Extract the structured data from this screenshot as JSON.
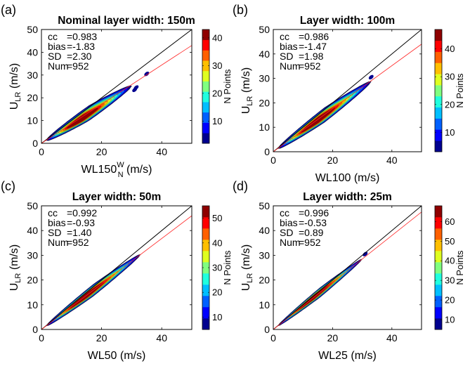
{
  "colormap": [
    "#00008f",
    "#0000ff",
    "#0060ff",
    "#00bfff",
    "#20ffdf",
    "#80ff80",
    "#dfff20",
    "#ffbf00",
    "#ff6000",
    "#ff0000",
    "#8f0000"
  ],
  "colorbar_label": "N Points",
  "chart_data": [
    {
      "type": "contour",
      "panel_letter": "(a)",
      "title": "Nominal layer width: 150m",
      "xlabel_main": "WL150",
      "xlabel_sup": "W",
      "xlabel_sub": "N",
      "xlabel_unit": " (m/s)",
      "ylabel_main": "U",
      "ylabel_sub": "LR",
      "ylabel_unit": " (m/s)",
      "xlim": [
        0,
        50
      ],
      "ylim": [
        0,
        50
      ],
      "xticks": [
        "0",
        "20",
        "40"
      ],
      "xtick_values": [
        0,
        20,
        40
      ],
      "yticks": [
        "0",
        "10",
        "20",
        "30",
        "40",
        "50"
      ],
      "ytick_values": [
        0,
        10,
        20,
        30,
        40,
        50
      ],
      "stats": {
        "cc": "0.983",
        "bias": "-1.83",
        "SD": "2.30",
        "Num": "952"
      },
      "one_to_one": true,
      "fit_line": {
        "slope": 0.86,
        "intercept": 0.0
      },
      "colorbar": {
        "range": [
          2,
          43
        ],
        "ticks": [
          "10",
          "20",
          "30",
          "40"
        ],
        "tick_values": [
          10,
          20,
          30,
          40
        ]
      },
      "band": {
        "x0": 1.5,
        "x1": 30,
        "slope": 0.84,
        "width": 2.2,
        "fill_ratio": 0.7
      },
      "islands": [
        {
          "x": 35,
          "y": 30.5
        },
        {
          "x": 31,
          "y": 23.5
        },
        {
          "x": 31.5,
          "y": 24.5
        }
      ]
    },
    {
      "type": "contour",
      "panel_letter": "(b)",
      "title": "Layer width: 100m",
      "xlabel_main": "WL100",
      "xlabel_unit": " (m/s)",
      "ylabel_main": "U",
      "ylabel_sub": "LR",
      "ylabel_unit": " (m/s)",
      "xlim": [
        0,
        50
      ],
      "ylim": [
        0,
        50
      ],
      "xticks": [
        "0",
        "20",
        "40"
      ],
      "xtick_values": [
        0,
        20,
        40
      ],
      "yticks": [
        "0",
        "10",
        "20",
        "30",
        "40",
        "50"
      ],
      "ytick_values": [
        0,
        10,
        20,
        30,
        40,
        50
      ],
      "stats": {
        "cc": "0.986",
        "bias": "-1.47",
        "SD": "1.98",
        "Num": "952"
      },
      "one_to_one": true,
      "fit_line": {
        "slope": 0.88,
        "intercept": 0.0
      },
      "colorbar": {
        "range": [
          3,
          47
        ],
        "ticks": [
          "10",
          "20",
          "30",
          "40"
        ],
        "tick_values": [
          10,
          20,
          30,
          40
        ]
      },
      "band": {
        "x0": 1.5,
        "x1": 33,
        "slope": 0.87,
        "width": 2.0,
        "fill_ratio": 0.7
      },
      "islands": [
        {
          "x": 33,
          "y": 30.5
        }
      ]
    },
    {
      "type": "contour",
      "panel_letter": "(c)",
      "title": "Layer width: 50m",
      "xlabel_main": "WL50",
      "xlabel_unit": " (m/s)",
      "ylabel_main": "U",
      "ylabel_sub": "LR",
      "ylabel_unit": " (m/s)",
      "xlim": [
        0,
        50
      ],
      "ylim": [
        0,
        50
      ],
      "xticks": [
        "0",
        "20",
        "40"
      ],
      "xtick_values": [
        0,
        20,
        40
      ],
      "yticks": [
        "0",
        "10",
        "20",
        "30",
        "40",
        "50"
      ],
      "ytick_values": [
        0,
        10,
        20,
        30,
        40,
        50
      ],
      "stats": {
        "cc": "0.992",
        "bias": "-0.93",
        "SD": "1.40",
        "Num": "952"
      },
      "one_to_one": true,
      "fit_line": {
        "slope": 0.92,
        "intercept": 0.0
      },
      "colorbar": {
        "range": [
          5,
          55
        ],
        "ticks": [
          "10",
          "20",
          "30",
          "40",
          "50"
        ],
        "tick_values": [
          10,
          20,
          30,
          40,
          50
        ]
      },
      "band": {
        "x0": 1.5,
        "x1": 33,
        "slope": 0.92,
        "width": 1.6,
        "fill_ratio": 0.7
      },
      "islands": []
    },
    {
      "type": "contour",
      "panel_letter": "(d)",
      "title": "Layer width: 25m",
      "xlabel_main": "WL25",
      "xlabel_unit": " (m/s)",
      "ylabel_main": "U",
      "ylabel_sub": "LR",
      "ylabel_unit": " (m/s)",
      "xlim": [
        0,
        50
      ],
      "ylim": [
        0,
        50
      ],
      "xticks": [
        "0",
        "20",
        "40"
      ],
      "xtick_values": [
        0,
        20,
        40
      ],
      "yticks": [
        "0",
        "10",
        "20",
        "30",
        "40",
        "50"
      ],
      "ytick_values": [
        0,
        10,
        20,
        30,
        40,
        50
      ],
      "stats": {
        "cc": "0.996",
        "bias": "-0.53",
        "SD": "0.89",
        "Num": "952"
      },
      "one_to_one": true,
      "fit_line": {
        "slope": 0.95,
        "intercept": 0.0
      },
      "colorbar": {
        "range": [
          5,
          68
        ],
        "ticks": [
          "10",
          "20",
          "30",
          "40",
          "50",
          "60"
        ],
        "tick_values": [
          10,
          20,
          30,
          40,
          50,
          60
        ]
      },
      "band": {
        "x0": 1.5,
        "x1": 30,
        "slope": 0.95,
        "width": 1.3,
        "fill_ratio": 0.7
      },
      "islands": [
        {
          "x": 31,
          "y": 30.5
        }
      ]
    }
  ]
}
